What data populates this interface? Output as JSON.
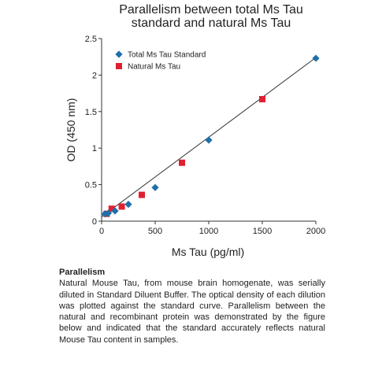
{
  "chart_data": {
    "type": "scatter",
    "title": [
      "Parallelism between total Ms Tau",
      "standard and natural Ms Tau"
    ],
    "xlabel": "Ms Tau (pg/ml)",
    "ylabel": "OD (450 nm)",
    "xlim": [
      0,
      2000
    ],
    "ylim": [
      0,
      2.5
    ],
    "x_ticks": [
      0,
      500,
      1000,
      1500,
      2000
    ],
    "y_ticks": [
      0,
      0.5,
      1,
      1.5,
      2,
      2.5
    ],
    "x_tick_labels": [
      "0",
      "500",
      "1000",
      "1500",
      "2000"
    ],
    "y_tick_labels": [
      "0",
      "0.5",
      "1",
      "1.5",
      "2",
      "2.5"
    ],
    "grid": false,
    "legend_position": "top-left",
    "series": [
      {
        "name": "Total Ms Tau Standard",
        "marker": "diamond",
        "color": "#1f6fa8",
        "x": [
          31.25,
          62.5,
          125,
          250,
          500,
          1000,
          2000
        ],
        "y": [
          0.1,
          0.11,
          0.14,
          0.23,
          0.46,
          1.11,
          2.23
        ]
      },
      {
        "name": "Natural Ms Tau",
        "marker": "square",
        "color": "#e02030",
        "x": [
          47,
          94,
          188,
          375,
          750,
          1500
        ],
        "y": [
          0.1,
          0.17,
          0.2,
          0.36,
          0.8,
          1.67
        ]
      }
    ],
    "fit_line": {
      "x": [
        0,
        2000
      ],
      "y": [
        0.06,
        2.24
      ],
      "color": "#333333"
    }
  },
  "caption": {
    "heading": "Parallelism",
    "body": "Natural Mouse Tau, from mouse brain homogenate, was serially diluted in Standard Diluent Buffer. The optical density of each dilution was plotted against the standard curve. Parallelism between the natural and recombinant protein was demonstrated by the figure below and indicated that the standard accurately reflects natural Mouse Tau content in samples."
  }
}
